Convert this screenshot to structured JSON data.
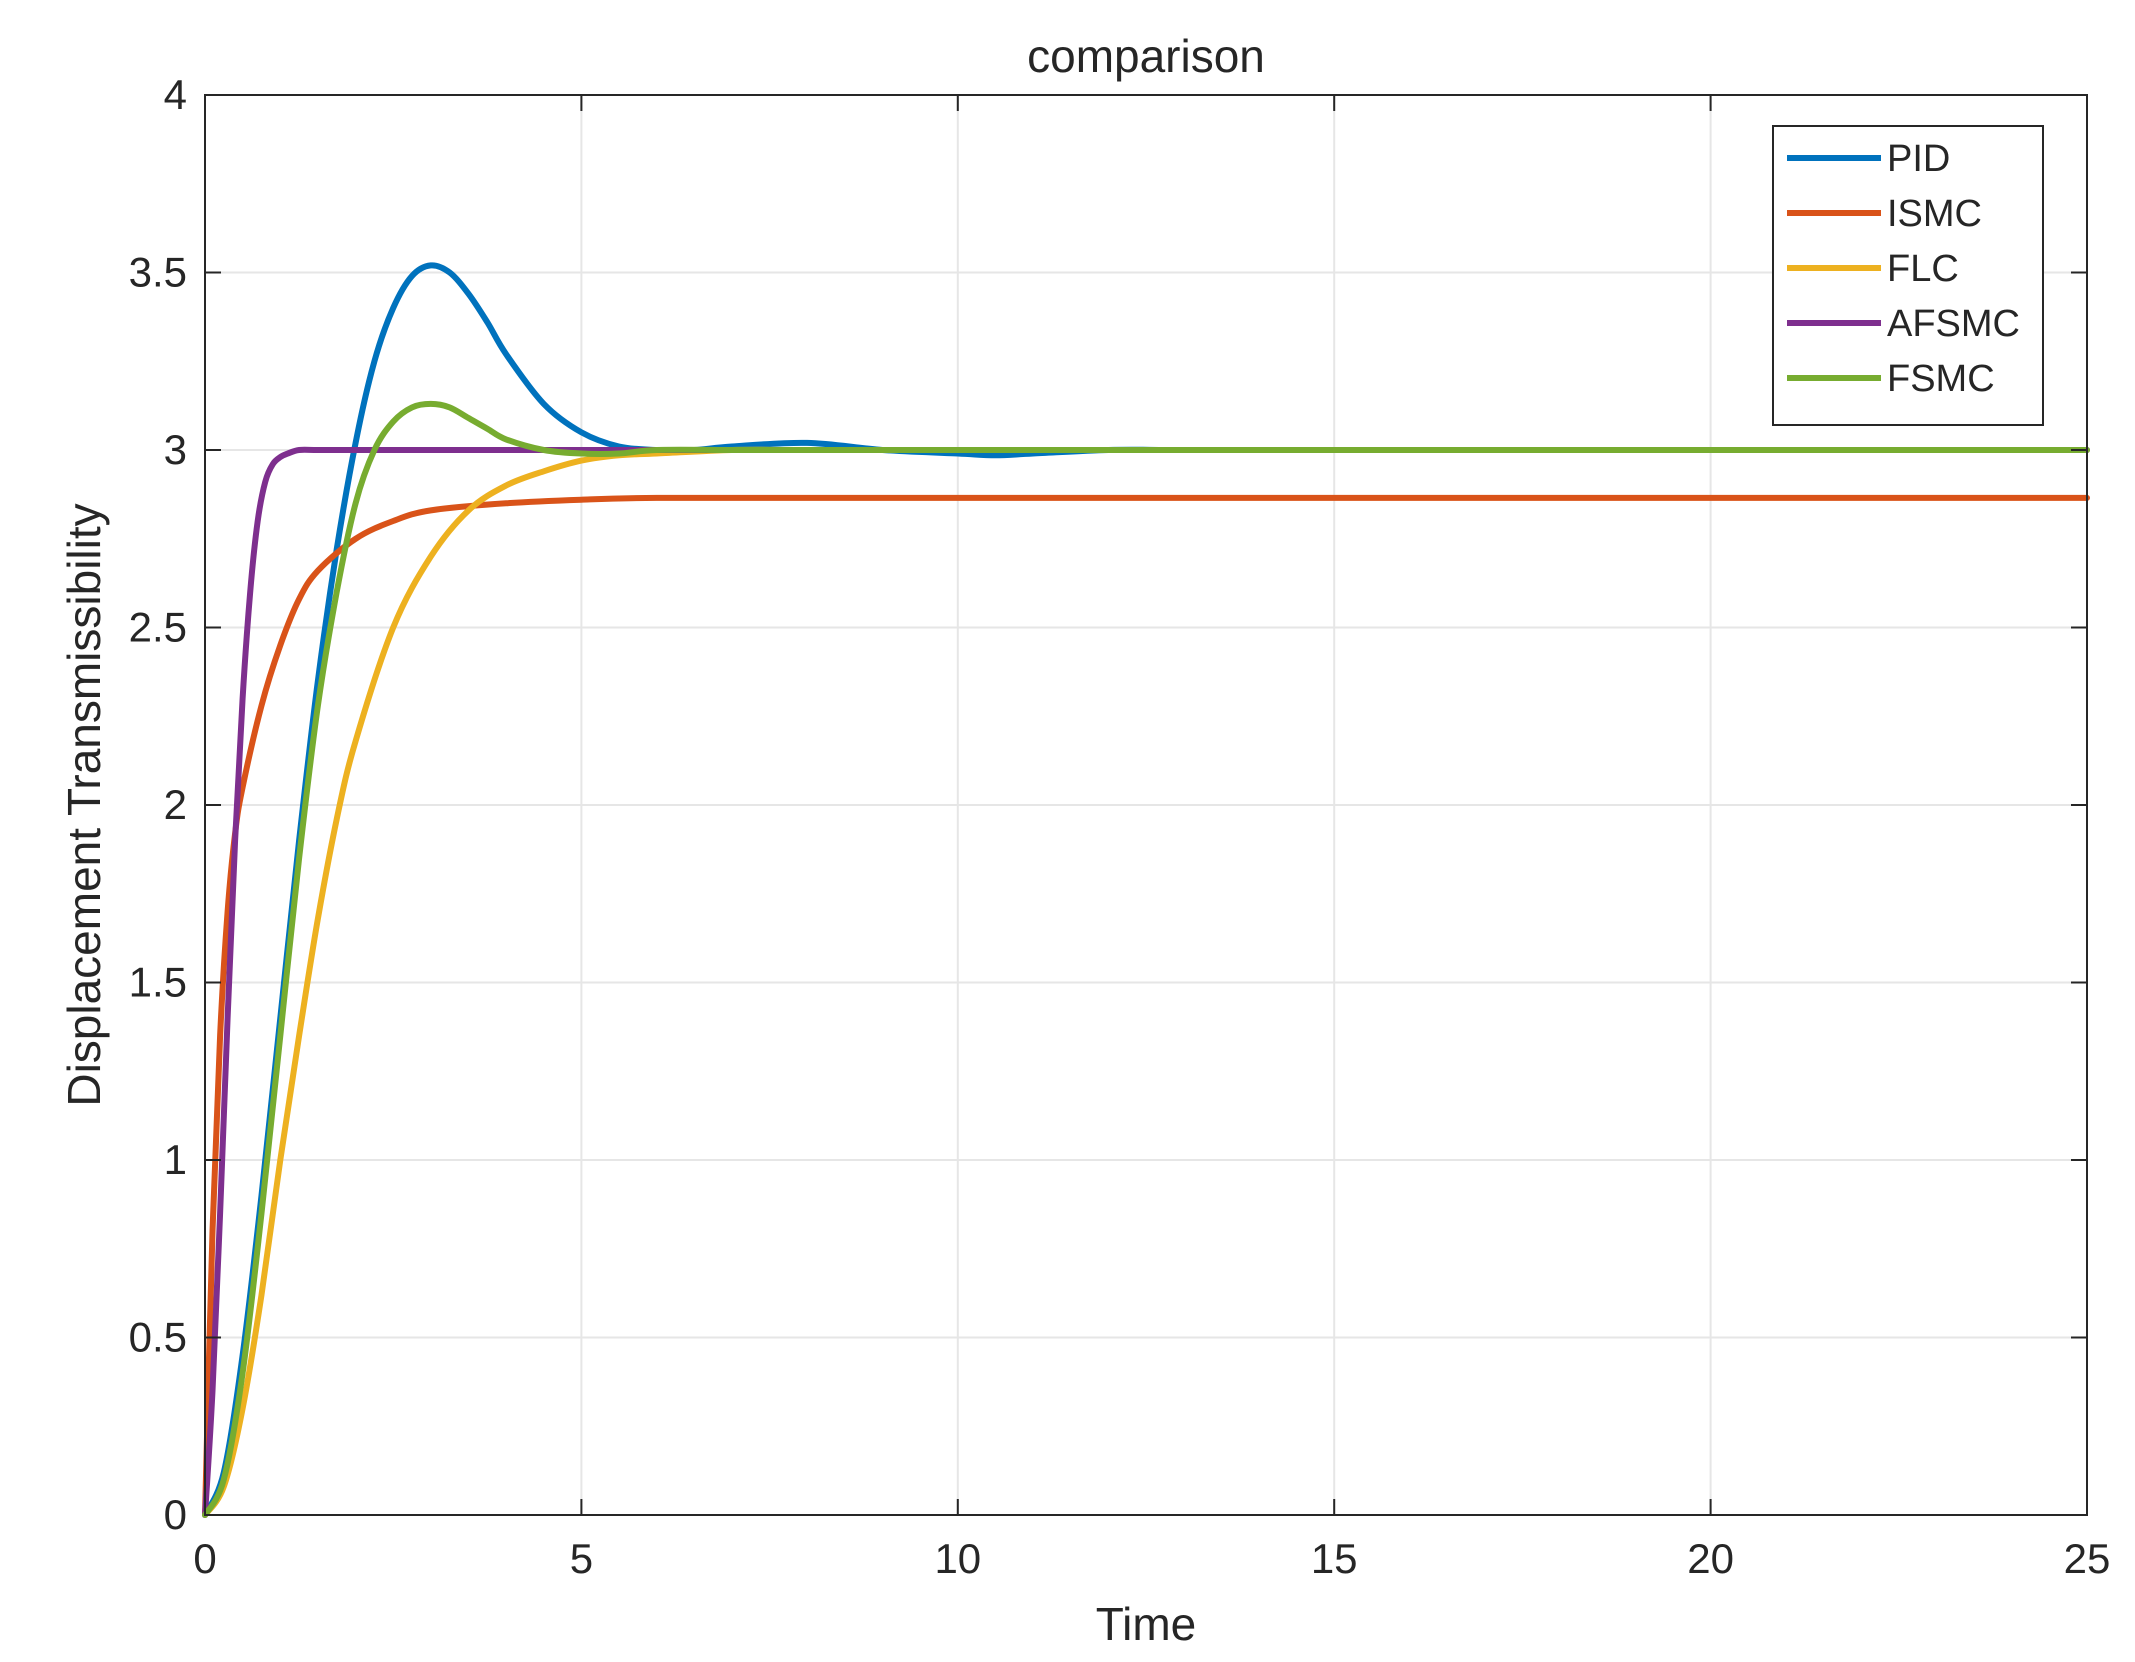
{
  "chart_data": {
    "type": "line",
    "title": "comparison",
    "xlabel": "Time",
    "ylabel": "Displacement Transmissibility",
    "xlim": [
      0,
      25
    ],
    "ylim": [
      0,
      4
    ],
    "xticks": [
      0,
      5,
      10,
      15,
      20,
      25
    ],
    "xtick_labels": [
      "0",
      "5",
      "10",
      "15",
      "20",
      "25"
    ],
    "yticks": [
      0,
      0.5,
      1,
      1.5,
      2,
      2.5,
      3,
      3.5,
      4
    ],
    "ytick_labels": [
      "0",
      "0.5",
      "1",
      "1.5",
      "2",
      "2.5",
      "3",
      "3.5",
      "4"
    ],
    "grid": true,
    "legend_position": "top-right",
    "series": [
      {
        "name": "PID",
        "color": "#0072BD",
        "x": [
          0,
          0.25,
          0.5,
          0.75,
          1.0,
          1.25,
          1.5,
          1.75,
          2.0,
          2.25,
          2.5,
          2.75,
          3.0,
          3.25,
          3.5,
          3.75,
          4.0,
          4.5,
          5.0,
          5.5,
          6.0,
          6.5,
          7.0,
          8.0,
          9.0,
          10.0,
          10.5,
          11.0,
          12.0,
          13.0,
          15.0,
          20.0,
          25.0
        ],
        "y": [
          0,
          0.12,
          0.45,
          0.9,
          1.4,
          1.9,
          2.35,
          2.72,
          3.02,
          3.25,
          3.4,
          3.49,
          3.52,
          3.5,
          3.44,
          3.36,
          3.27,
          3.13,
          3.05,
          3.01,
          3.0,
          3.0,
          3.01,
          3.02,
          3.0,
          2.99,
          2.985,
          2.99,
          3.0,
          3.0,
          3.0,
          3.0,
          3.0
        ]
      },
      {
        "name": "ISMC",
        "color": "#D95319",
        "x": [
          0,
          0.1,
          0.2,
          0.3,
          0.4,
          0.5,
          0.75,
          1.0,
          1.25,
          1.5,
          2.0,
          2.5,
          3.0,
          4.0,
          5.0,
          6.0,
          8.0,
          10.0,
          15.0,
          20.0,
          25.0
        ],
        "y": [
          0,
          0.8,
          1.35,
          1.7,
          1.92,
          2.05,
          2.28,
          2.45,
          2.58,
          2.66,
          2.75,
          2.8,
          2.83,
          2.85,
          2.86,
          2.865,
          2.865,
          2.865,
          2.865,
          2.865,
          2.865
        ]
      },
      {
        "name": "FLC",
        "color": "#EDB120",
        "x": [
          0,
          0.25,
          0.5,
          0.75,
          1.0,
          1.25,
          1.5,
          1.75,
          2.0,
          2.5,
          3.0,
          3.5,
          4.0,
          4.5,
          5.0,
          5.5,
          6.0,
          7.0,
          8.0,
          10.0,
          15.0,
          20.0,
          25.0
        ],
        "y": [
          0,
          0.08,
          0.3,
          0.62,
          1.0,
          1.35,
          1.68,
          1.96,
          2.18,
          2.5,
          2.7,
          2.83,
          2.9,
          2.94,
          2.97,
          2.985,
          2.99,
          3.0,
          3.0,
          3.0,
          3.0,
          3.0,
          3.0
        ]
      },
      {
        "name": "AFSMC",
        "color": "#7E2F8E",
        "x": [
          0,
          0.1,
          0.2,
          0.3,
          0.4,
          0.5,
          0.6,
          0.7,
          0.8,
          0.9,
          1.0,
          1.1,
          1.25,
          1.5,
          2.0,
          3.0,
          5.0,
          10.0,
          15.0,
          20.0,
          25.0
        ],
        "y": [
          0,
          0.35,
          0.85,
          1.4,
          1.9,
          2.3,
          2.6,
          2.8,
          2.91,
          2.96,
          2.98,
          2.99,
          3.0,
          3.0,
          3.0,
          3.0,
          3.0,
          3.0,
          3.0,
          3.0,
          3.0
        ]
      },
      {
        "name": "FSMC",
        "color": "#77AC30",
        "x": [
          0,
          0.25,
          0.5,
          0.75,
          1.0,
          1.25,
          1.5,
          1.75,
          2.0,
          2.25,
          2.5,
          2.75,
          3.0,
          3.25,
          3.5,
          3.75,
          4.0,
          4.5,
          5.0,
          5.5,
          6.0,
          7.0,
          8.0,
          10.0,
          15.0,
          20.0,
          25.0
        ],
        "y": [
          0,
          0.1,
          0.4,
          0.85,
          1.35,
          1.85,
          2.28,
          2.6,
          2.85,
          3.0,
          3.08,
          3.12,
          3.13,
          3.12,
          3.09,
          3.06,
          3.03,
          3.0,
          2.99,
          2.99,
          3.0,
          3.0,
          3.0,
          3.0,
          3.0,
          3.0,
          3.0
        ]
      }
    ]
  }
}
